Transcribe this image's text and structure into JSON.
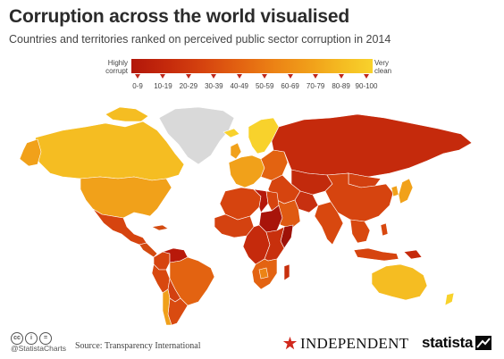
{
  "title": "Corruption across the world visualised",
  "subtitle": "Countries and territories ranked on perceived public sector corruption in 2014",
  "legend": {
    "left_label": "Highly corrupt",
    "right_label": "Very clean",
    "ranges": [
      "0-9",
      "10-19",
      "20-29",
      "30-39",
      "40-49",
      "50-59",
      "60-69",
      "70-79",
      "80-89",
      "90-100"
    ],
    "color_low": "#b2170a",
    "color_high": "#f8d22c"
  },
  "map": {
    "no_data_color": "#d9d9d9",
    "regions": [
      {
        "name": "Canada",
        "score_band": "80-89",
        "color": "#f5bd22"
      },
      {
        "name": "United States",
        "score_band": "70-79",
        "color": "#f1a11a"
      },
      {
        "name": "Mexico",
        "score_band": "30-39",
        "color": "#d6440f"
      },
      {
        "name": "Central America",
        "score_band": "30-39",
        "color": "#d34a10"
      },
      {
        "name": "Greenland",
        "score_band": "no data",
        "color": "#d9d9d9"
      },
      {
        "name": "Venezuela",
        "score_band": "10-19",
        "color": "#b8190a"
      },
      {
        "name": "Colombia",
        "score_band": "30-39",
        "color": "#d6440f"
      },
      {
        "name": "Brazil",
        "score_band": "40-49",
        "color": "#e36311"
      },
      {
        "name": "Peru",
        "score_band": "30-39",
        "color": "#d8480f"
      },
      {
        "name": "Bolivia",
        "score_band": "30-39",
        "color": "#d24010"
      },
      {
        "name": "Argentina",
        "score_band": "30-39",
        "color": "#d94b10"
      },
      {
        "name": "Chile",
        "score_band": "70-79",
        "color": "#f0a01a"
      },
      {
        "name": "Western Europe",
        "score_band": "70-79",
        "color": "#f1a11a"
      },
      {
        "name": "Scandinavia",
        "score_band": "90-100",
        "color": "#f8d22c"
      },
      {
        "name": "Eastern Europe",
        "score_band": "40-49",
        "color": "#e36311"
      },
      {
        "name": "Russia",
        "score_band": "20-29",
        "color": "#c52a0c"
      },
      {
        "name": "Central Asia",
        "score_band": "20-29",
        "color": "#c22a0c"
      },
      {
        "name": "Middle East",
        "score_band": "30-39",
        "color": "#d6440f"
      },
      {
        "name": "Saudi Arabia",
        "score_band": "40-49",
        "color": "#df5a12"
      },
      {
        "name": "Iran",
        "score_band": "20-29",
        "color": "#c73010"
      },
      {
        "name": "North Africa",
        "score_band": "30-39",
        "color": "#d6440f"
      },
      {
        "name": "Libya",
        "score_band": "10-19",
        "color": "#b4180a"
      },
      {
        "name": "West Africa",
        "score_band": "30-39",
        "color": "#d44210"
      },
      {
        "name": "Central Africa",
        "score_band": "20-29",
        "color": "#c52a0c"
      },
      {
        "name": "Sudan",
        "score_band": "10-19",
        "color": "#a8140a"
      },
      {
        "name": "Somalia",
        "score_band": "0-9",
        "color": "#9e1208"
      },
      {
        "name": "East Africa",
        "score_band": "20-29",
        "color": "#c8300d"
      },
      {
        "name": "Southern Africa",
        "score_band": "40-49",
        "color": "#e36311"
      },
      {
        "name": "Botswana",
        "score_band": "60-69",
        "color": "#ec8415"
      },
      {
        "name": "India",
        "score_band": "30-39",
        "color": "#d8480f"
      },
      {
        "name": "China",
        "score_band": "30-39",
        "color": "#d6440f"
      },
      {
        "name": "Mongolia",
        "score_band": "30-39",
        "color": "#d24010"
      },
      {
        "name": "Japan",
        "score_band": "70-79",
        "color": "#f1a11a"
      },
      {
        "name": "Southeast Asia",
        "score_band": "30-39",
        "color": "#d8480f"
      },
      {
        "name": "Indonesia",
        "score_band": "30-39",
        "color": "#d6440f"
      },
      {
        "name": "Papua New Guinea",
        "score_band": "20-29",
        "color": "#c52a0c"
      },
      {
        "name": "Australia",
        "score_band": "80-89",
        "color": "#f5bd22"
      },
      {
        "name": "New Zealand",
        "score_band": "90-100",
        "color": "#f8d22c"
      }
    ]
  },
  "footer": {
    "cc_icons": [
      "cc",
      "i",
      "="
    ],
    "handle": "@StatistaCharts",
    "source": "Source: Transparency International",
    "partner": "INDEPENDENT",
    "brand": "statista"
  }
}
